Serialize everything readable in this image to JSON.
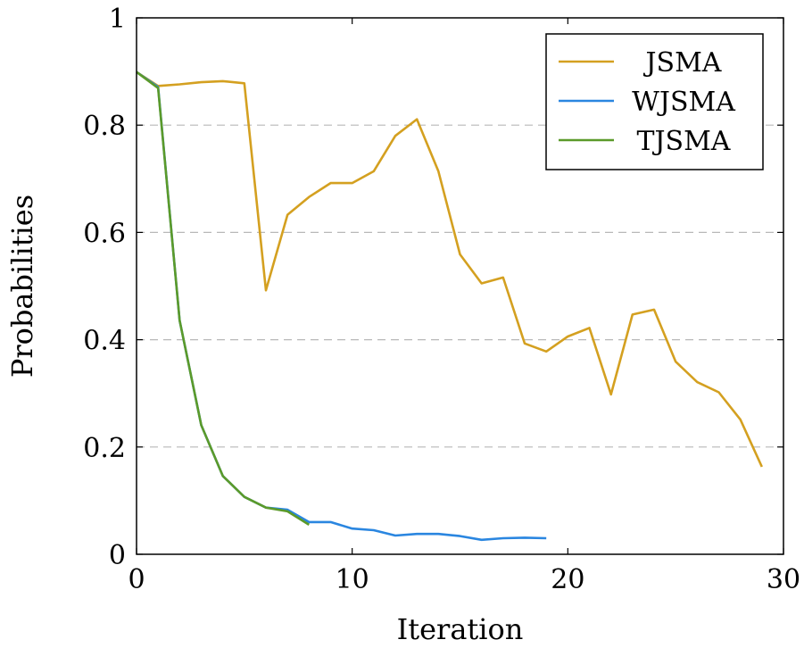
{
  "chart_data": {
    "type": "line",
    "xlabel": "Iteration",
    "ylabel": "Probabilities",
    "xlim": [
      0,
      30
    ],
    "ylim": [
      0,
      1
    ],
    "xticks": [
      "0",
      "10",
      "20",
      "30"
    ],
    "yticks": [
      "0",
      "0.2",
      "0.4",
      "0.6",
      "0.8",
      "1"
    ],
    "grid": "horizontal dashed",
    "legend_position": "top-right",
    "series": [
      {
        "name": "JSMA",
        "color": "#d4a020",
        "x": [
          0,
          1,
          2,
          3,
          4,
          5,
          6,
          7,
          8,
          9,
          10,
          11,
          12,
          13,
          14,
          15,
          16,
          17,
          18,
          19,
          20,
          21,
          22,
          23,
          24,
          25,
          26,
          27,
          28,
          29
        ],
        "y": [
          0.899,
          0.873,
          0.876,
          0.88,
          0.882,
          0.878,
          0.492,
          0.633,
          0.666,
          0.692,
          0.692,
          0.714,
          0.78,
          0.811,
          0.714,
          0.559,
          0.505,
          0.516,
          0.393,
          0.378,
          0.406,
          0.422,
          0.298,
          0.447,
          0.456,
          0.359,
          0.321,
          0.302,
          0.251,
          0.163
        ]
      },
      {
        "name": "WJSMA",
        "color": "#2a86e0",
        "x": [
          0,
          1,
          2,
          3,
          4,
          5,
          6,
          7,
          8,
          9,
          10,
          11,
          12,
          13,
          14,
          15,
          16,
          17,
          18,
          19
        ],
        "y": [
          0.899,
          0.871,
          0.436,
          0.241,
          0.146,
          0.107,
          0.087,
          0.083,
          0.06,
          0.06,
          0.048,
          0.045,
          0.035,
          0.038,
          0.038,
          0.034,
          0.027,
          0.03,
          0.031,
          0.03
        ]
      },
      {
        "name": "TJSMA",
        "color": "#5b9a2a",
        "x": [
          0,
          1,
          2,
          3,
          4,
          5,
          6,
          7,
          8
        ],
        "y": [
          0.899,
          0.869,
          0.436,
          0.241,
          0.146,
          0.107,
          0.087,
          0.08,
          0.055
        ]
      }
    ]
  }
}
